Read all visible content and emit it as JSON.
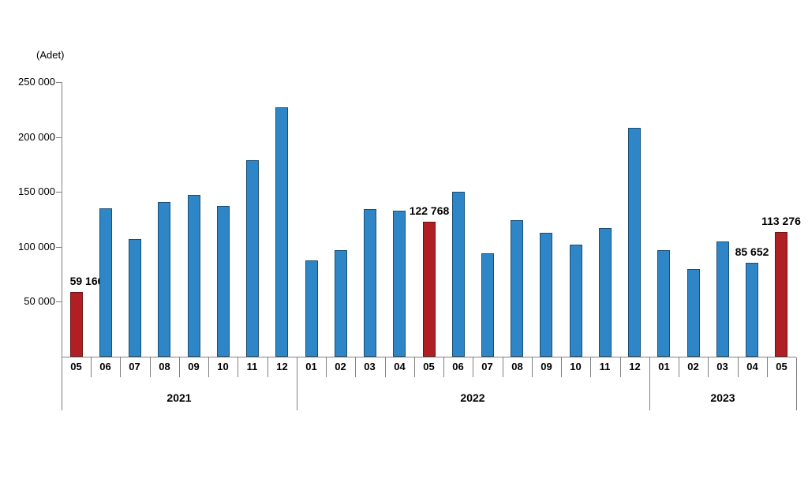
{
  "chart_data": {
    "type": "bar",
    "unit_label": "(Adet)",
    "xlabel": "",
    "ylabel": "(Adet)",
    "ylim": [
      0,
      250000
    ],
    "grid": false,
    "legend": "none",
    "y_ticks": [
      {
        "label": "250 000",
        "value": 250000
      },
      {
        "label": "200 000",
        "value": 200000
      },
      {
        "label": "150 000",
        "value": 150000
      },
      {
        "label": "100 000",
        "value": 100000
      },
      {
        "label": "50 000",
        "value": 50000
      }
    ],
    "colors": {
      "bar_fill": "#2E86C6",
      "bar_border": "#1B4E74",
      "highlight_fill": "#B01F24",
      "highlight_border": "#6E1113",
      "axis": "#808080",
      "text": "#000000"
    },
    "year_groups": [
      {
        "label": "2021",
        "months": 8
      },
      {
        "label": "2022",
        "months": 12
      },
      {
        "label": "2023",
        "months": 5
      }
    ],
    "bars": [
      {
        "year": "2021",
        "month": "05",
        "value": 59166,
        "highlight": true,
        "label": "59 166"
      },
      {
        "year": "2021",
        "month": "06",
        "value": 135000,
        "highlight": false
      },
      {
        "year": "2021",
        "month": "07",
        "value": 107000,
        "highlight": false
      },
      {
        "year": "2021",
        "month": "08",
        "value": 141000,
        "highlight": false
      },
      {
        "year": "2021",
        "month": "09",
        "value": 147000,
        "highlight": false
      },
      {
        "year": "2021",
        "month": "10",
        "value": 137000,
        "highlight": false
      },
      {
        "year": "2021",
        "month": "11",
        "value": 179000,
        "highlight": false
      },
      {
        "year": "2021",
        "month": "12",
        "value": 227000,
        "highlight": false
      },
      {
        "year": "2022",
        "month": "01",
        "value": 88000,
        "highlight": false
      },
      {
        "year": "2022",
        "month": "02",
        "value": 97000,
        "highlight": false
      },
      {
        "year": "2022",
        "month": "03",
        "value": 134000,
        "highlight": false
      },
      {
        "year": "2022",
        "month": "04",
        "value": 133000,
        "highlight": false
      },
      {
        "year": "2022",
        "month": "05",
        "value": 122768,
        "highlight": true,
        "label": "122 768"
      },
      {
        "year": "2022",
        "month": "06",
        "value": 150000,
        "highlight": false
      },
      {
        "year": "2022",
        "month": "07",
        "value": 94000,
        "highlight": false
      },
      {
        "year": "2022",
        "month": "08",
        "value": 124000,
        "highlight": false
      },
      {
        "year": "2022",
        "month": "09",
        "value": 113000,
        "highlight": false
      },
      {
        "year": "2022",
        "month": "10",
        "value": 102000,
        "highlight": false
      },
      {
        "year": "2022",
        "month": "11",
        "value": 117000,
        "highlight": false
      },
      {
        "year": "2022",
        "month": "12",
        "value": 208000,
        "highlight": false
      },
      {
        "year": "2023",
        "month": "01",
        "value": 97000,
        "highlight": false
      },
      {
        "year": "2023",
        "month": "02",
        "value": 80000,
        "highlight": false
      },
      {
        "year": "2023",
        "month": "03",
        "value": 105000,
        "highlight": false
      },
      {
        "year": "2023",
        "month": "04",
        "value": 85652,
        "highlight": false,
        "label": "85 652"
      },
      {
        "year": "2023",
        "month": "05",
        "value": 113276,
        "highlight": true,
        "label": "113 276"
      }
    ]
  }
}
